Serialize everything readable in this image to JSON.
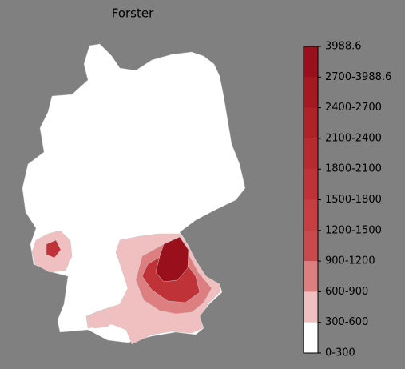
{
  "title": "Forster",
  "legend": {
    "labels": [
      "3988.6",
      "2700-3988.6",
      "2400-2700",
      "2100-2400",
      "1800-2100",
      "1500-1800",
      "1200-1500",
      "900-1200",
      "600-900",
      "300-600",
      "0-300"
    ],
    "colors": [
      "#9a0f1c",
      "#a51a22",
      "#ae2228",
      "#b72a30",
      "#bf3338",
      "#c43e42",
      "#c94a4d",
      "#dd7f80",
      "#f0c0c0",
      "#ffffff"
    ]
  }
}
